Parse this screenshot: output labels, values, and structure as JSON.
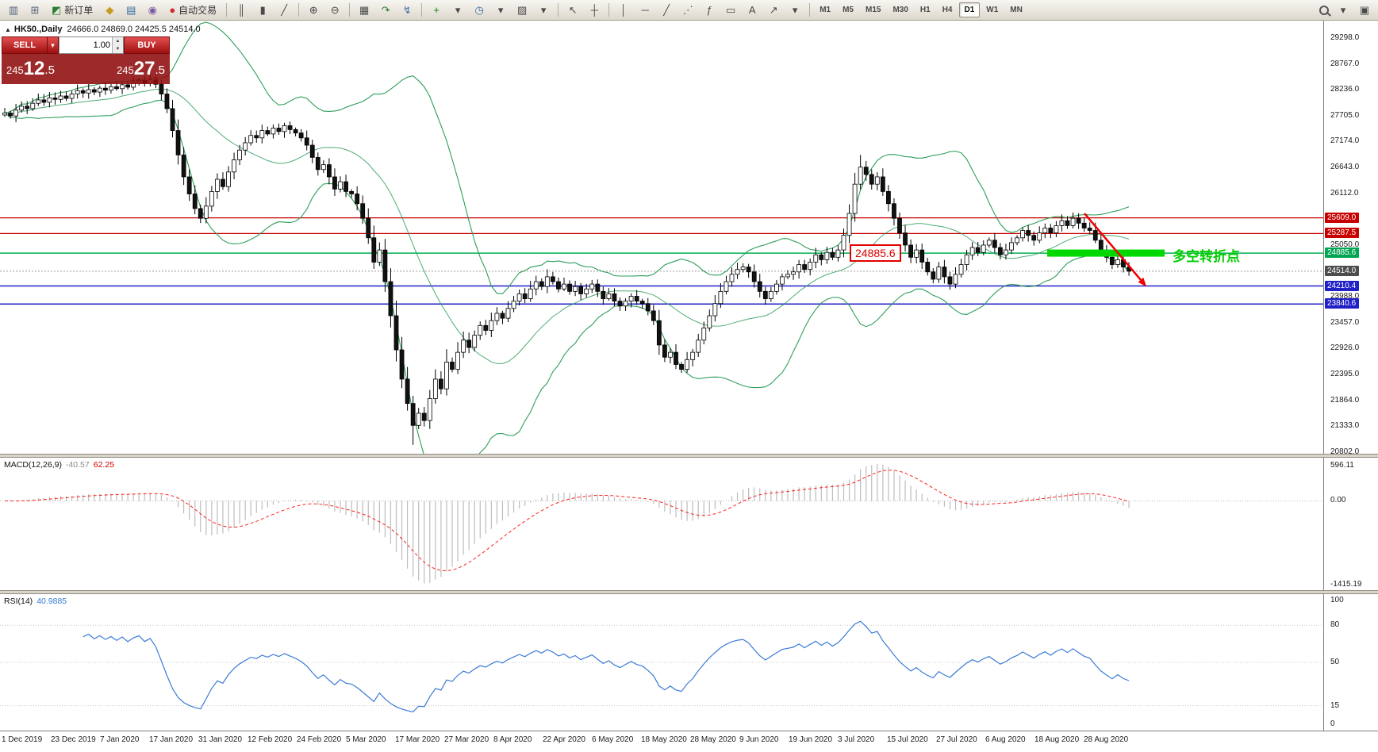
{
  "toolbar": {
    "new_order": {
      "label": "新订单",
      "glyph": "◩"
    },
    "autotrade": {
      "label": "自动交易",
      "glyph": "●"
    },
    "icons_left": [
      {
        "name": "new-chart-icon",
        "glyph": "▥",
        "color": "#55657a"
      },
      {
        "name": "profiles-icon",
        "glyph": "⊞",
        "color": "#55657a"
      }
    ],
    "icons_mid": [
      {
        "name": "metaeditor-icon",
        "glyph": "◆",
        "color": "#c79a1e"
      },
      {
        "name": "terminal-icon",
        "glyph": "▤",
        "color": "#3b6ea5"
      },
      {
        "name": "navigator-icon",
        "glyph": "◉",
        "color": "#7a5aa0"
      }
    ],
    "chart_tools": [
      {
        "name": "bar-chart-icon",
        "glyph": "║"
      },
      {
        "name": "candlestick-chart-icon",
        "glyph": "▮"
      },
      {
        "name": "line-chart-icon",
        "glyph": "╱"
      },
      {
        "sep": true
      },
      {
        "name": "zoom-in-icon",
        "glyph": "⊕"
      },
      {
        "name": "zoom-out-icon",
        "glyph": "⊖"
      },
      {
        "sep": true
      },
      {
        "name": "tile-windows-icon",
        "glyph": "▦"
      },
      {
        "name": "auto-scroll-icon",
        "glyph": "↷",
        "color": "#2e7d32"
      },
      {
        "name": "chart-shift-icon",
        "glyph": "↯",
        "color": "#3b6ea5"
      },
      {
        "sep": true
      },
      {
        "name": "add-indicator-icon",
        "glyph": "+",
        "color": "#0a8a0a"
      },
      {
        "name": "add-indicator-dropdown-icon",
        "glyph": "▾"
      },
      {
        "name": "periods-icon",
        "glyph": "◷",
        "color": "#3b6ea5"
      },
      {
        "name": "periods-dropdown-icon",
        "glyph": "▾"
      },
      {
        "name": "templates-icon",
        "glyph": "▨"
      },
      {
        "name": "templates-dropdown-icon",
        "glyph": "▾"
      },
      {
        "sep": true
      },
      {
        "name": "cursor-icon",
        "glyph": "↖"
      },
      {
        "name": "crosshair-icon",
        "glyph": "┼"
      },
      {
        "sep": true
      },
      {
        "name": "vertical-line-icon",
        "glyph": "│"
      },
      {
        "name": "horizontal-line-icon",
        "glyph": "─"
      },
      {
        "name": "trendline-icon",
        "glyph": "╱"
      },
      {
        "name": "channel-icon",
        "glyph": "⋰"
      },
      {
        "name": "fibonacci-icon",
        "glyph": "ƒ"
      },
      {
        "name": "shapes-icon",
        "glyph": "▭"
      },
      {
        "name": "text-label-icon",
        "glyph": "A"
      },
      {
        "name": "arrow-tool-icon",
        "glyph": "↗"
      },
      {
        "name": "drawing-dropdown-icon",
        "glyph": "▾"
      }
    ],
    "timeframes": [
      "M1",
      "M5",
      "M15",
      "M30",
      "H1",
      "H4",
      "D1",
      "W1",
      "MN"
    ],
    "active_timeframe": "D1",
    "icons_right": [
      {
        "name": "search-dropdown-icon",
        "glyph": "▾"
      },
      {
        "name": "panel-icon",
        "glyph": "▣"
      }
    ]
  },
  "chart_header": {
    "symbol": "HK50.,Daily",
    "ohlc": "24666.0 24869.0 24425.5 24514.0"
  },
  "order_panel": {
    "sell_label": "SELL",
    "buy_label": "BUY",
    "volume": "1.00",
    "sell_price": {
      "small": "245",
      "big": "12",
      "frac": ".5"
    },
    "buy_price": {
      "small": "245",
      "big": "27",
      "frac": ".5"
    }
  },
  "chart_data": {
    "type": "candlestick",
    "symbol": "HK50.,Daily",
    "current_price": "24514.0",
    "x_labels": [
      "1 Dec 2019",
      "23 Dec 2019",
      "7 Jan 2020",
      "17 Jan 2020",
      "31 Jan 2020",
      "12 Feb 2020",
      "24 Feb 2020",
      "5 Mar 2020",
      "17 Mar 2020",
      "27 Mar 2020",
      "8 Apr 2020",
      "22 Apr 2020",
      "6 May 2020",
      "18 May 2020",
      "28 May 2020",
      "9 Jun 2020",
      "19 Jun 2020",
      "3 Jul 2020",
      "15 Jul 2020",
      "27 Jul 2020",
      "6 Aug 2020",
      "18 Aug 2020",
      "28 Aug 2020"
    ],
    "closes": [
      27760,
      27700,
      27820,
      27900,
      27850,
      27960,
      28030,
      27980,
      28070,
      28040,
      28110,
      28060,
      28150,
      28220,
      28170,
      28240,
      28190,
      28270,
      28230,
      28300,
      28260,
      28340,
      28290,
      28380,
      28430,
      28370,
      28440,
      28350,
      28150,
      27850,
      27400,
      26900,
      26450,
      26100,
      25800,
      25600,
      25850,
      26150,
      26400,
      26250,
      26550,
      26800,
      27000,
      27150,
      27300,
      27250,
      27400,
      27330,
      27450,
      27380,
      27500,
      27420,
      27350,
      27250,
      27100,
      26850,
      26600,
      26700,
      26450,
      26200,
      26350,
      26150,
      26100,
      25900,
      25600,
      25200,
      24700,
      24950,
      24300,
      23600,
      22900,
      22300,
      21800,
      21350,
      21600,
      21450,
      21900,
      22300,
      22100,
      22650,
      22500,
      22850,
      23100,
      22950,
      23200,
      23400,
      23300,
      23500,
      23650,
      23550,
      23750,
      23900,
      24050,
      23950,
      24150,
      24300,
      24200,
      24400,
      24300,
      24150,
      24250,
      24100,
      24200,
      24050,
      24150,
      24250,
      24100,
      23950,
      24050,
      23900,
      23800,
      23900,
      24000,
      23900,
      23850,
      23700,
      23500,
      23000,
      22750,
      22850,
      22600,
      22500,
      22700,
      22850,
      23100,
      23350,
      23600,
      23850,
      24100,
      24300,
      24450,
      24550,
      24600,
      24500,
      24300,
      24100,
      23950,
      24100,
      24250,
      24400,
      24450,
      24500,
      24650,
      24550,
      24700,
      24850,
      24750,
      24900,
      24800,
      24950,
      25250,
      25700,
      26300,
      26650,
      26500,
      26300,
      26450,
      26150,
      25900,
      25600,
      25300,
      25050,
      24800,
      24950,
      24700,
      24500,
      24350,
      24600,
      24400,
      24250,
      24450,
      24650,
      24850,
      25000,
      24900,
      25050,
      25150,
      25000,
      24850,
      24950,
      25100,
      25200,
      25350,
      25250,
      25150,
      25300,
      25400,
      25300,
      25450,
      25550,
      25450,
      25600,
      25500,
      25400,
      25350,
      25150,
      24950,
      24800,
      24650,
      24750,
      24600,
      24514
    ],
    "wick_overrides": [
      {
        "i": 73,
        "low": 20950
      },
      {
        "i": 153,
        "high": 26900
      }
    ],
    "bollinger": {
      "period": 20,
      "deviation": 2,
      "color": "#2e9e5b"
    },
    "price_ticks": [
      "29298.0",
      "28767.0",
      "28236.0",
      "27705.0",
      "27174.0",
      "26643.0",
      "26112.0",
      "25581.0",
      "25050.0",
      "24519.0",
      "23988.0",
      "23457.0",
      "22926.0",
      "22395.0",
      "21864.0",
      "21333.0",
      "20802.0"
    ],
    "price_tick_values": [
      29298,
      28767,
      28236,
      27705,
      27174,
      26643,
      26112,
      25581,
      25050,
      24519,
      23988,
      23457,
      22926,
      22395,
      21864,
      21333,
      20802
    ],
    "price_markers": [
      {
        "label": "25609.0",
        "price": 25609.0,
        "bg": "#c80000",
        "line": "#c80000",
        "width": 1.2
      },
      {
        "label": "25287.5",
        "price": 25287.5,
        "bg": "#c80000",
        "line": "#c80000",
        "width": 1.2
      },
      {
        "label": "24885.6",
        "price": 24885.6,
        "bg": "#00a651",
        "line": "#00b050",
        "width": 1.5
      },
      {
        "label": "24514.0",
        "price": 24514.0,
        "bg": "#4d4d4d",
        "line": "#9a9a9a",
        "width": 1,
        "dash": "2,2"
      },
      {
        "label": "24210.4",
        "price": 24210.4,
        "bg": "#2020c8",
        "line": "#2020c8",
        "width": 1.5
      },
      {
        "label": "23840.6",
        "price": 23840.6,
        "bg": "#2020c8",
        "line": "#2020c8",
        "width": 1.5
      }
    ],
    "macd": {
      "title": "MACD(12,26,9)",
      "value_main": "-40.57",
      "value_signal": "62.25",
      "axis_labels": [
        "596.11",
        "0.00",
        "-1415.19"
      ],
      "axis_values": [
        596.11,
        0,
        -1415.19
      ],
      "hist_color": "#bdbdbd",
      "signal_color": "#ff2020"
    },
    "rsi": {
      "title": "RSI(14)",
      "value": "40.9885",
      "axis_labels": [
        "100",
        "80",
        "50",
        "15",
        "0"
      ],
      "axis_values": [
        100,
        80,
        50,
        15,
        0
      ],
      "levels": [
        80,
        50,
        15
      ],
      "line_color": "#3a7bd5"
    },
    "annotations": {
      "price_box": {
        "text": "24885.6",
        "color": "#e40000"
      },
      "turning_point": {
        "text": "多空转折点",
        "color": "#00cc00"
      },
      "highlight_bar": {
        "price": 24885.6,
        "color": "#00d800"
      },
      "trend_arrow": {
        "from_price": 25700,
        "to_price": 24200,
        "color": "#ee0000"
      }
    }
  }
}
